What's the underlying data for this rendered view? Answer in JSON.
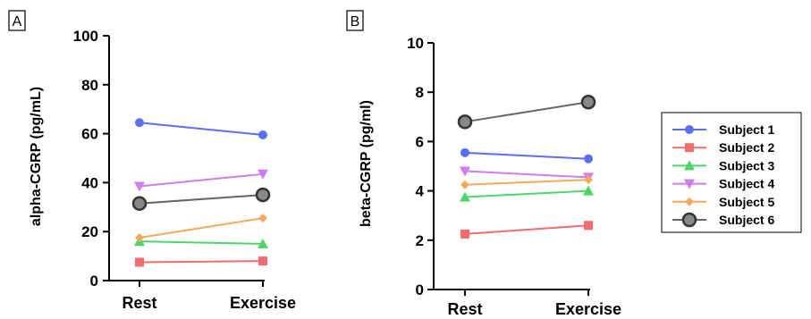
{
  "panels": [
    {
      "label": "A",
      "ylabel": "alpha-CGRP (pg/mL)",
      "categories": [
        "Rest",
        "Exercise"
      ],
      "ylim": [
        0,
        100
      ],
      "yticks": [
        "0",
        "20",
        "40",
        "60",
        "80",
        "100"
      ]
    },
    {
      "label": "B",
      "ylabel": "beta-CGRP (pg/ml)",
      "categories": [
        "Rest",
        "Exercise"
      ],
      "ylim": [
        0,
        10
      ],
      "yticks": [
        "0",
        "2",
        "4",
        "6",
        "8",
        "10"
      ]
    }
  ],
  "legend": [
    {
      "name": "Subject 1",
      "color": "#5b6ff5",
      "marker": "circle"
    },
    {
      "name": "Subject 2",
      "color": "#f36b6b",
      "marker": "square"
    },
    {
      "name": "Subject 3",
      "color": "#4cd66a",
      "marker": "triangle-up"
    },
    {
      "name": "Subject 4",
      "color": "#cf7bf2",
      "marker": "triangle-down"
    },
    {
      "name": "Subject 5",
      "color": "#f7a85a",
      "marker": "diamond"
    },
    {
      "name": "Subject 6",
      "color": "#555555",
      "marker": "circle-ring"
    }
  ],
  "chart_data": [
    {
      "type": "line",
      "panel": "A",
      "categories": [
        "Rest",
        "Exercise"
      ],
      "ylabel": "alpha-CGRP (pg/mL)",
      "ylim": [
        0,
        100
      ],
      "series": [
        {
          "name": "Subject 1",
          "values": [
            64.5,
            59.5
          ]
        },
        {
          "name": "Subject 2",
          "values": [
            7.5,
            8.0
          ]
        },
        {
          "name": "Subject 3",
          "values": [
            16.0,
            15.0
          ]
        },
        {
          "name": "Subject 4",
          "values": [
            38.5,
            43.5
          ]
        },
        {
          "name": "Subject 5",
          "values": [
            17.5,
            25.5
          ]
        },
        {
          "name": "Subject 6",
          "values": [
            31.5,
            35.0
          ]
        }
      ]
    },
    {
      "type": "line",
      "panel": "B",
      "categories": [
        "Rest",
        "Exercise"
      ],
      "ylabel": "beta-CGRP (pg/ml)",
      "ylim": [
        0,
        10
      ],
      "series": [
        {
          "name": "Subject 1",
          "values": [
            5.55,
            5.3
          ]
        },
        {
          "name": "Subject 2",
          "values": [
            2.25,
            2.6
          ]
        },
        {
          "name": "Subject 3",
          "values": [
            3.75,
            4.0
          ]
        },
        {
          "name": "Subject 4",
          "values": [
            4.8,
            4.55
          ]
        },
        {
          "name": "Subject 5",
          "values": [
            4.25,
            4.45
          ]
        },
        {
          "name": "Subject 6",
          "values": [
            6.8,
            7.6
          ]
        }
      ]
    }
  ]
}
